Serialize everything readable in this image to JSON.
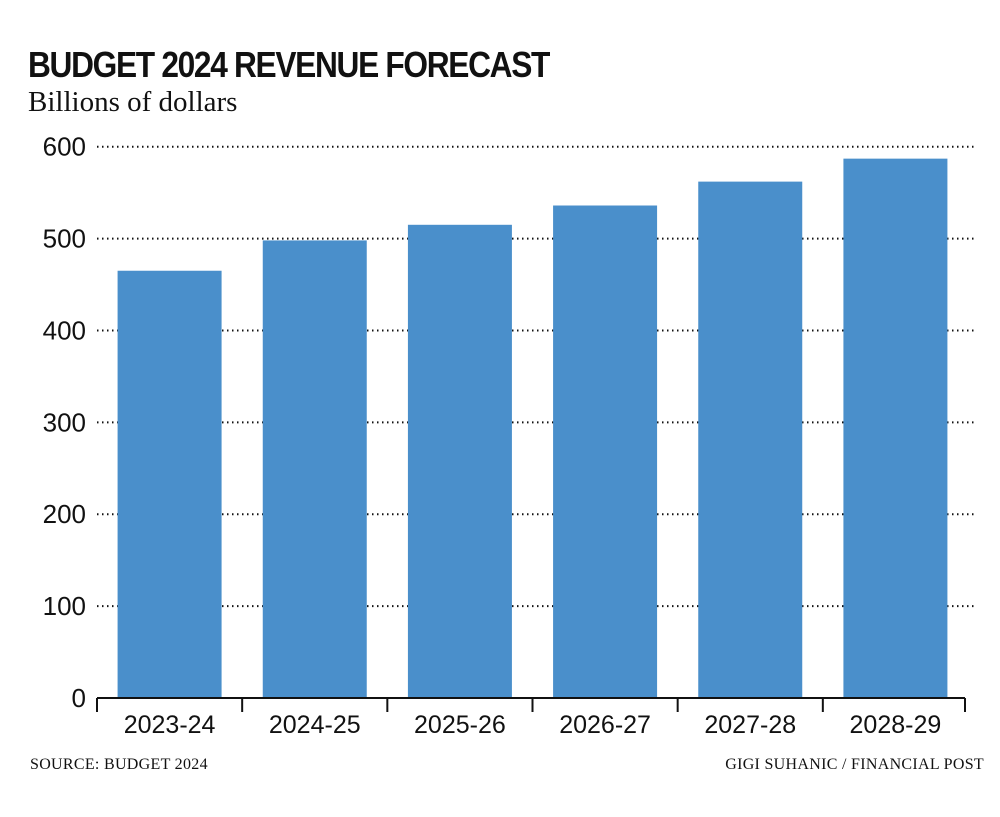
{
  "chart_data": {
    "type": "bar",
    "title": "BUDGET 2024 REVENUE FORECAST",
    "subtitle": "Billions of dollars",
    "categories": [
      "2023-24",
      "2024-25",
      "2025-26",
      "2026-27",
      "2027-28",
      "2028-29"
    ],
    "values": [
      465,
      498,
      515,
      536,
      562,
      587
    ],
    "ylim": [
      0,
      600
    ],
    "yticks": [
      0,
      100,
      200,
      300,
      400,
      500,
      600
    ],
    "xlabel": "",
    "ylabel": "",
    "grid": "horizontal dotted",
    "bar_color": "#4a8fcb",
    "source": "SOURCE: BUDGET 2024",
    "credit": "GIGI SUHANIC / FINANCIAL POST"
  }
}
